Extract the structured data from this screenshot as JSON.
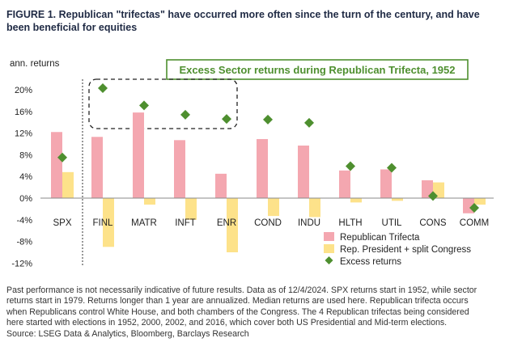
{
  "figure": {
    "number": "FIGURE 1.",
    "title": "Republican \"trifectas\" have occurred more often since the turn of the century, and have been beneficial for equities"
  },
  "chart_data": {
    "type": "bar",
    "title": "Excess Sector returns during Republican Trifecta, 1952",
    "ylabel": "ann. returns",
    "ylim": [
      -12,
      22
    ],
    "yticks": [
      -12,
      -8,
      -4,
      0,
      4,
      8,
      12,
      16,
      20
    ],
    "ytick_labels": [
      "-12%",
      "-8%",
      "-4%",
      "0%",
      "4%",
      "8%",
      "12%",
      "16%",
      "20%"
    ],
    "categories": [
      "SPX",
      "FINL",
      "MATR",
      "INFT",
      "ENR",
      "COND",
      "INDU",
      "HLTH",
      "UTIL",
      "CONS",
      "COMM"
    ],
    "series": [
      {
        "name": "Republican Trifecta",
        "kind": "bar",
        "color": "#f4a7b0",
        "values": [
          12.2,
          11.3,
          15.8,
          10.7,
          4.5,
          10.9,
          9.7,
          5.1,
          5.3,
          3.3,
          -2.8
        ]
      },
      {
        "name": "Rep. President + split Congress",
        "kind": "bar",
        "color": "#fde28a",
        "values": [
          4.8,
          -9.0,
          -1.2,
          -4.0,
          -10.0,
          -3.3,
          -3.5,
          -0.8,
          -0.5,
          2.9,
          -1.2
        ]
      },
      {
        "name": "Excess returns",
        "kind": "marker",
        "color": "#4e8f2f",
        "values": [
          7.5,
          20.3,
          17.1,
          15.4,
          14.6,
          14.5,
          13.9,
          5.9,
          5.6,
          0.4,
          -1.8
        ]
      }
    ],
    "legend_position": "bottom-right",
    "grid": false
  },
  "footnote": {
    "lines": [
      "Past performance is not necessarily indicative of future results. Data as of 12/4/2024. SPX returns start in 1952, while sector",
      "returns start in 1979. Returns longer than 1 year are annualized. Median returns are used here. Republican trifecta occurs",
      "when Republicans control White House, and both chambers of the Congress. The 4 Republican trifectas being considered",
      "here started with elections in 1952, 2000, 2002, and 2016, which cover both US Presidential and Mid-term elections.",
      "Source: LSEG Data & Analytics, Bloomberg, Barclays Research"
    ]
  }
}
